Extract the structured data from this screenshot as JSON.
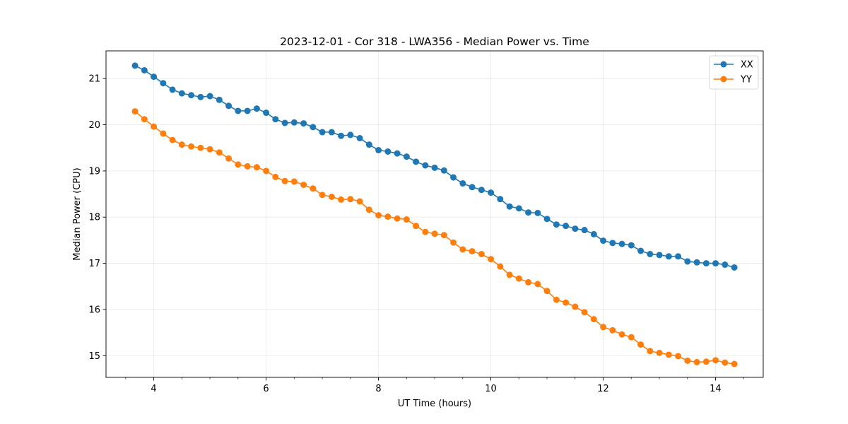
{
  "chart_data": {
    "type": "line",
    "title": "2023-12-01 - Cor 318 - LWA356 - Median Power vs. Time",
    "xlabel": "UT Time (hours)",
    "ylabel": "Median Power (CPU)",
    "xlim": [
      3.15,
      14.85
    ],
    "ylim": [
      14.53,
      21.6
    ],
    "x_major_ticks": [
      4,
      6,
      8,
      10,
      12,
      14
    ],
    "x_tick_labels": [
      "4",
      "6",
      "8",
      "10",
      "12",
      "14"
    ],
    "x_minor_tick_step": 0.5,
    "y_ticks": [
      15,
      16,
      17,
      18,
      19,
      20,
      21
    ],
    "y_tick_labels": [
      "15",
      "16",
      "17",
      "18",
      "19",
      "20",
      "21"
    ],
    "grid": true,
    "legend_position": "top-right",
    "x_start": 3.667,
    "x_step": 0.1667,
    "series": [
      {
        "name": "XX",
        "color": "#1f77b4",
        "marker": "circle",
        "values": [
          21.28,
          21.18,
          21.04,
          20.9,
          20.76,
          20.68,
          20.64,
          20.6,
          20.62,
          20.54,
          20.41,
          20.3,
          20.3,
          20.35,
          20.26,
          20.12,
          20.04,
          20.05,
          20.03,
          19.95,
          19.84,
          19.84,
          19.76,
          19.78,
          19.71,
          19.57,
          19.45,
          19.42,
          19.38,
          19.31,
          19.2,
          19.12,
          19.07,
          19.01,
          18.86,
          18.73,
          18.65,
          18.59,
          18.53,
          18.39,
          18.23,
          18.19,
          18.1,
          18.09,
          17.96,
          17.84,
          17.81,
          17.75,
          17.72,
          17.63,
          17.49,
          17.44,
          17.42,
          17.39,
          17.27,
          17.2,
          17.18,
          17.15,
          17.15,
          17.04,
          17.02,
          17.0,
          17.0,
          16.97,
          16.91
        ]
      },
      {
        "name": "YY",
        "color": "#ff7f0e",
        "marker": "circle",
        "values": [
          20.29,
          20.12,
          19.96,
          19.81,
          19.67,
          19.57,
          19.53,
          19.5,
          19.47,
          19.4,
          19.27,
          19.14,
          19.1,
          19.08,
          19.0,
          18.87,
          18.78,
          18.77,
          18.7,
          18.62,
          18.48,
          18.44,
          18.38,
          18.39,
          18.34,
          18.16,
          18.04,
          18.01,
          17.97,
          17.95,
          17.81,
          17.68,
          17.64,
          17.61,
          17.45,
          17.3,
          17.26,
          17.2,
          17.09,
          16.93,
          16.75,
          16.67,
          16.59,
          16.55,
          16.4,
          16.21,
          16.15,
          16.06,
          15.94,
          15.79,
          15.62,
          15.55,
          15.46,
          15.4,
          15.24,
          15.1,
          15.06,
          15.02,
          14.99,
          14.89,
          14.86,
          14.87,
          14.9,
          14.85,
          14.82
        ]
      }
    ]
  }
}
